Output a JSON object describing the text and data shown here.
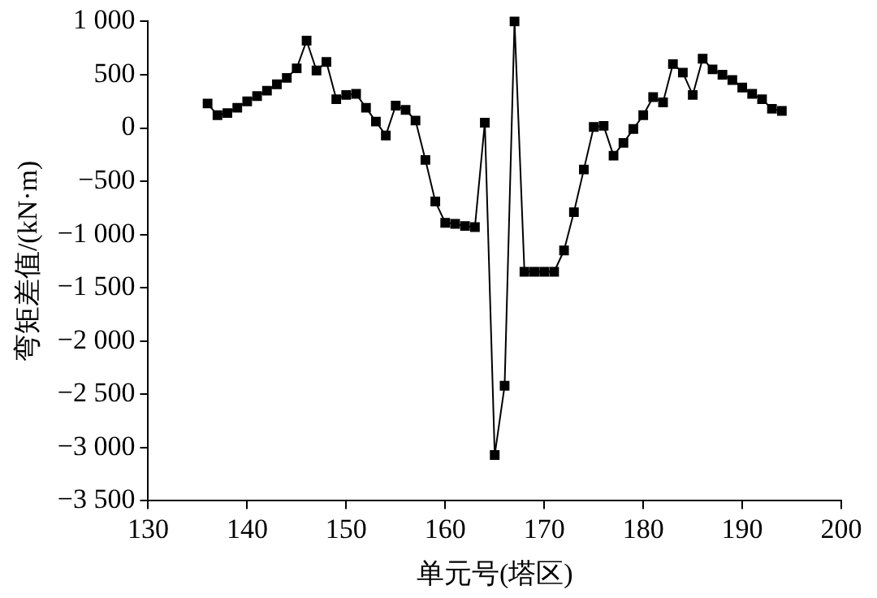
{
  "chart_data": {
    "type": "line",
    "xlabel": "单元号(塔区)",
    "ylabel": "弯矩差值/(kN·m)",
    "x": [
      136,
      137,
      138,
      139,
      140,
      141,
      142,
      143,
      144,
      145,
      146,
      147,
      148,
      149,
      150,
      151,
      152,
      153,
      154,
      155,
      156,
      157,
      158,
      159,
      160,
      161,
      162,
      163,
      164,
      165,
      166,
      167,
      168,
      169,
      170,
      171,
      172,
      173,
      174,
      175,
      176,
      177,
      178,
      179,
      180,
      181,
      182,
      183,
      184,
      185,
      186,
      187,
      188,
      189,
      190,
      191,
      192,
      193,
      194
    ],
    "series": [
      {
        "color": "#000000",
        "values": [
          230,
          120,
          140,
          190,
          250,
          300,
          350,
          410,
          470,
          560,
          820,
          540,
          620,
          270,
          310,
          320,
          190,
          60,
          -70,
          210,
          170,
          70,
          -300,
          -690,
          -890,
          -900,
          -920,
          -930,
          50,
          -3070,
          -2420,
          1000,
          -1350,
          -1350,
          -1350,
          -1350,
          -1150,
          -790,
          -390,
          10,
          20,
          -260,
          -140,
          -10,
          120,
          290,
          240,
          600,
          520,
          310,
          650,
          550,
          500,
          450,
          380,
          320,
          270,
          180,
          160
        ]
      }
    ],
    "xlim": [
      130,
      200
    ],
    "xticks": [
      130,
      140,
      150,
      160,
      170,
      180,
      190,
      200
    ],
    "ylim": [
      -3500,
      1000
    ],
    "yticks": [
      {
        "value": -3500,
        "label": "−3 500"
      },
      {
        "value": -3000,
        "label": "−3 000"
      },
      {
        "value": -2500,
        "label": "−2 500"
      },
      {
        "value": -2000,
        "label": "−2 000"
      },
      {
        "value": -1500,
        "label": "−1 500"
      },
      {
        "value": -1000,
        "label": "−1 000"
      },
      {
        "value": -500,
        "label": "−500"
      },
      0,
      500,
      {
        "value": 1000,
        "label": "1 000"
      }
    ],
    "marker": "square",
    "line_style": "solid",
    "grid": false,
    "legend": false
  }
}
